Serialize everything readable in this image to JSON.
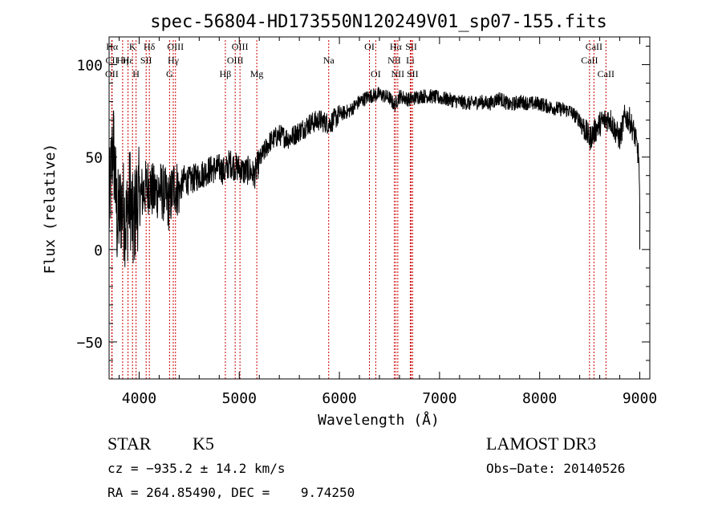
{
  "chart_data": {
    "type": "line",
    "title": "spec-56804-HD173550N120249V01_sp07-155.fits",
    "xlabel": "Wavelength (Å)",
    "ylabel": "Flux (relative)",
    "xlim": [
      3700,
      9100
    ],
    "ylim": [
      -70,
      115
    ],
    "xticks": [
      {
        "value": 4000,
        "label": "4000"
      },
      {
        "value": 5000,
        "label": "5000"
      },
      {
        "value": 6000,
        "label": "6000"
      },
      {
        "value": 7000,
        "label": "7000"
      },
      {
        "value": 8000,
        "label": "8000"
      },
      {
        "value": 9000,
        "label": "9000"
      }
    ],
    "yticks": [
      {
        "value": -50,
        "label": "−50"
      },
      {
        "value": 0,
        "label": "0"
      },
      {
        "value": 50,
        "label": "50"
      },
      {
        "value": 100,
        "label": "100"
      }
    ],
    "grid": false,
    "legend": "none",
    "line_color": "#000000",
    "marker_color": "#cc0000",
    "spectrum_anchors": [
      [
        3700,
        20
      ],
      [
        3740,
        60
      ],
      [
        3780,
        15
      ],
      [
        3830,
        25
      ],
      [
        3870,
        15
      ],
      [
        3910,
        30
      ],
      [
        3940,
        10
      ],
      [
        3970,
        25
      ],
      [
        4000,
        28
      ],
      [
        4050,
        32
      ],
      [
        4100,
        35
      ],
      [
        4150,
        30
      ],
      [
        4200,
        33
      ],
      [
        4250,
        30
      ],
      [
        4300,
        25
      ],
      [
        4350,
        35
      ],
      [
        4400,
        32
      ],
      [
        4450,
        38
      ],
      [
        4500,
        37
      ],
      [
        4600,
        40
      ],
      [
        4700,
        43
      ],
      [
        4800,
        44
      ],
      [
        4860,
        42
      ],
      [
        4900,
        47
      ],
      [
        4950,
        45
      ],
      [
        5000,
        44
      ],
      [
        5050,
        42
      ],
      [
        5100,
        43
      ],
      [
        5150,
        40
      ],
      [
        5200,
        48
      ],
      [
        5300,
        58
      ],
      [
        5400,
        62
      ],
      [
        5500,
        60
      ],
      [
        5600,
        64
      ],
      [
        5700,
        68
      ],
      [
        5800,
        70
      ],
      [
        5900,
        68
      ],
      [
        6000,
        73
      ],
      [
        6100,
        75
      ],
      [
        6200,
        80
      ],
      [
        6300,
        83
      ],
      [
        6400,
        84
      ],
      [
        6500,
        82
      ],
      [
        6550,
        78
      ],
      [
        6600,
        83
      ],
      [
        6700,
        81
      ],
      [
        6800,
        83
      ],
      [
        6900,
        83
      ],
      [
        7000,
        82
      ],
      [
        7100,
        81
      ],
      [
        7200,
        80
      ],
      [
        7300,
        79
      ],
      [
        7400,
        80
      ],
      [
        7500,
        79
      ],
      [
        7600,
        82
      ],
      [
        7700,
        78
      ],
      [
        7800,
        80
      ],
      [
        7900,
        79
      ],
      [
        8000,
        79
      ],
      [
        8100,
        77
      ],
      [
        8200,
        76
      ],
      [
        8300,
        75
      ],
      [
        8400,
        70
      ],
      [
        8500,
        60
      ],
      [
        8600,
        68
      ],
      [
        8650,
        70
      ],
      [
        8700,
        71
      ],
      [
        8750,
        65
      ],
      [
        8800,
        60
      ],
      [
        8850,
        72
      ],
      [
        8900,
        70
      ],
      [
        8950,
        62
      ],
      [
        8990,
        50
      ],
      [
        9000,
        20
      ]
    ],
    "spectral_lines": [
      {
        "label": "Hα",
        "wavelength": 3730,
        "row": 1
      },
      {
        "label": "CII",
        "wavelength": 3728,
        "row": 2
      },
      {
        "label": "OII",
        "wavelength": 3727,
        "row": 3
      },
      {
        "label": "Hη",
        "wavelength": 3835,
        "row": 2
      },
      {
        "label": "Hε",
        "wavelength": 3889,
        "row": 2
      },
      {
        "label": "K",
        "wavelength": 3934,
        "row": 1
      },
      {
        "label": "H",
        "wavelength": 3969,
        "row": 3
      },
      {
        "label": "Hδ",
        "wavelength": 4102,
        "row": 1
      },
      {
        "label": "SII",
        "wavelength": 4070,
        "row": 2
      },
      {
        "label": "G",
        "wavelength": 4304,
        "row": 3
      },
      {
        "label": "Hγ",
        "wavelength": 4341,
        "row": 2
      },
      {
        "label": "OIII",
        "wavelength": 4363,
        "row": 1
      },
      {
        "label": "Hβ",
        "wavelength": 4861,
        "row": 3
      },
      {
        "label": "OIII",
        "wavelength": 4959,
        "row": 2
      },
      {
        "label": "OIII",
        "wavelength": 5007,
        "row": 1
      },
      {
        "label": "Mg",
        "wavelength": 5175,
        "row": 3
      },
      {
        "label": "Na",
        "wavelength": 5893,
        "row": 2
      },
      {
        "label": "OI",
        "wavelength": 6300,
        "row": 1
      },
      {
        "label": "OI",
        "wavelength": 6363,
        "row": 3
      },
      {
        "label": "NII",
        "wavelength": 6548,
        "row": 2
      },
      {
        "label": "Hα",
        "wavelength": 6563,
        "row": 1
      },
      {
        "label": "NII",
        "wavelength": 6583,
        "row": 3
      },
      {
        "label": "Li",
        "wavelength": 6708,
        "row": 2
      },
      {
        "label": "SII",
        "wavelength": 6717,
        "row": 1
      },
      {
        "label": "SII",
        "wavelength": 6731,
        "row": 3
      },
      {
        "label": "CaII",
        "wavelength": 8498,
        "row": 2
      },
      {
        "label": "CaII",
        "wavelength": 8542,
        "row": 1
      },
      {
        "label": "CaII",
        "wavelength": 8662,
        "row": 3
      }
    ]
  },
  "info": {
    "object_class": "STAR",
    "subclass": "K5",
    "survey": "LAMOST DR3",
    "redshift": "cz = −935.2 ± 14.2 km/s",
    "obs_date": "Obs−Date: 20140526",
    "coords": "RA = 264.85490, DEC =    9.74250"
  }
}
